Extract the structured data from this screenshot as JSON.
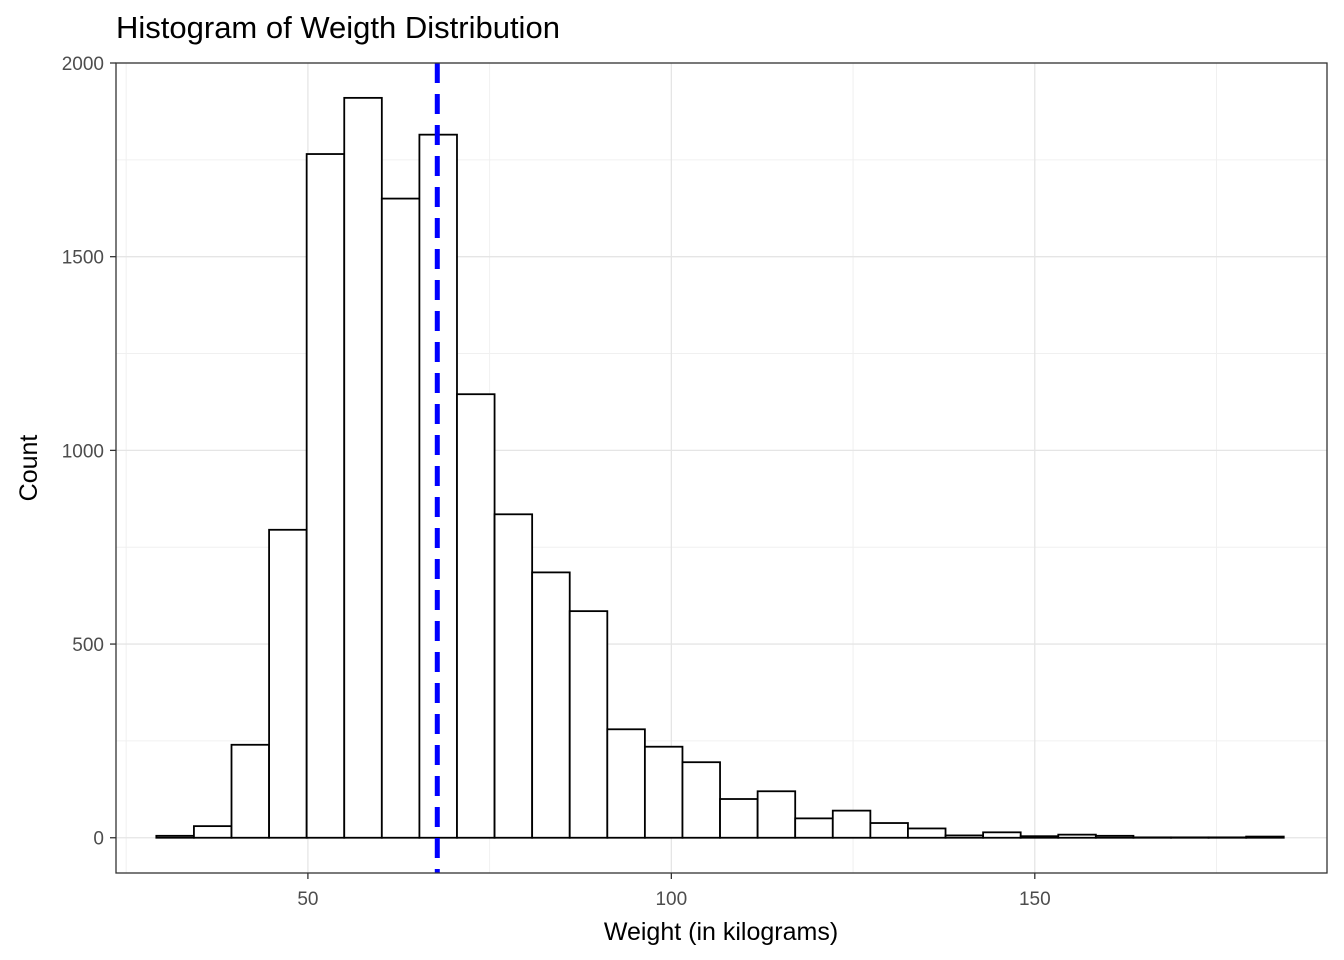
{
  "chart_data": {
    "type": "bar",
    "title": "Histogram of Weigth Distribution",
    "xlabel": "Weight (in kilograms)",
    "ylabel": "Count",
    "xlim": [
      23.6,
      190.2
    ],
    "ylim": [
      -91,
      2000
    ],
    "x_ticks": [
      50,
      100,
      150
    ],
    "y_ticks": [
      0,
      500,
      1000,
      1500,
      2000
    ],
    "bin_width": 5.17,
    "bins": [
      {
        "start": 29.15,
        "count": 5
      },
      {
        "start": 34.32,
        "count": 30
      },
      {
        "start": 39.49,
        "count": 240
      },
      {
        "start": 44.66,
        "count": 795
      },
      {
        "start": 49.83,
        "count": 1765
      },
      {
        "start": 55.0,
        "count": 1910
      },
      {
        "start": 60.17,
        "count": 1650
      },
      {
        "start": 65.34,
        "count": 1815
      },
      {
        "start": 70.51,
        "count": 1145
      },
      {
        "start": 75.68,
        "count": 835
      },
      {
        "start": 80.85,
        "count": 685
      },
      {
        "start": 86.02,
        "count": 585
      },
      {
        "start": 91.19,
        "count": 280
      },
      {
        "start": 96.36,
        "count": 235
      },
      {
        "start": 101.53,
        "count": 195
      },
      {
        "start": 106.7,
        "count": 100
      },
      {
        "start": 111.87,
        "count": 120
      },
      {
        "start": 117.04,
        "count": 50
      },
      {
        "start": 122.21,
        "count": 70
      },
      {
        "start": 127.38,
        "count": 38
      },
      {
        "start": 132.55,
        "count": 24
      },
      {
        "start": 137.72,
        "count": 6
      },
      {
        "start": 142.89,
        "count": 14
      },
      {
        "start": 148.06,
        "count": 4
      },
      {
        "start": 153.23,
        "count": 8
      },
      {
        "start": 158.4,
        "count": 5
      },
      {
        "start": 163.57,
        "count": 1
      },
      {
        "start": 168.74,
        "count": 1
      },
      {
        "start": 173.91,
        "count": 1
      },
      {
        "start": 179.08,
        "count": 3
      }
    ],
    "reference_line": {
      "x": 67.8,
      "color": "#0000ff",
      "style": "dashed"
    },
    "bar_fill": "#ffffff",
    "bar_stroke": "#000000",
    "grid": true
  }
}
